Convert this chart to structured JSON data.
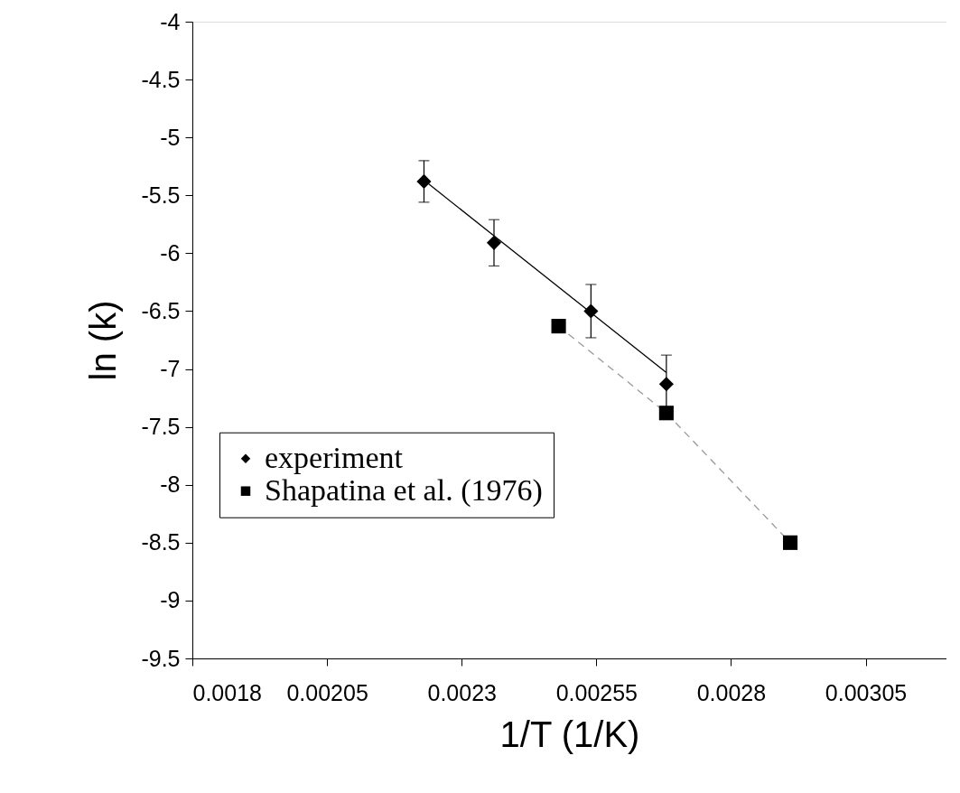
{
  "chart_data": {
    "type": "scatter",
    "xlabel": "1/T  (1/K)",
    "ylabel": "ln (k)",
    "xlim": [
      0.0018,
      0.0032
    ],
    "xticks": [
      0.0018,
      0.00205,
      0.0023,
      0.00255,
      0.0028,
      0.00305
    ],
    "ylim": [
      -9.5,
      -4
    ],
    "yticks": [
      -9.5,
      -9,
      -8.5,
      -8,
      -7.5,
      -7,
      -6.5,
      -6,
      -5.5,
      -5,
      -4.5,
      -4
    ],
    "grid": false,
    "legend": "bottom left",
    "series": [
      {
        "type": "line",
        "color": "#000000",
        "line_style": "solid",
        "marker": "none",
        "x": [
          0.00223,
          0.00268
        ],
        "values": [
          -5.37,
          -7.03
        ]
      },
      {
        "type": "line",
        "color": "#999999",
        "line_style": "dashed",
        "marker": "none",
        "x": [
          0.00248,
          0.00268,
          0.00291
        ],
        "values": [
          -6.63,
          -7.38,
          -8.5
        ]
      },
      {
        "name": "experiment",
        "color": "#000000",
        "marker": "diamond",
        "x": [
          0.00223,
          0.00236,
          0.00254,
          0.00268
        ],
        "values": [
          -5.38,
          -5.91,
          -6.5,
          -7.13
        ],
        "errors": [
          0.18,
          0.2,
          0.23,
          0.25
        ]
      },
      {
        "name": "Shapatina et al. (1976)",
        "color": "#000000",
        "marker": "square",
        "x": [
          0.00248,
          0.00268,
          0.00291
        ],
        "values": [
          -6.63,
          -7.38,
          -8.5
        ]
      }
    ]
  }
}
